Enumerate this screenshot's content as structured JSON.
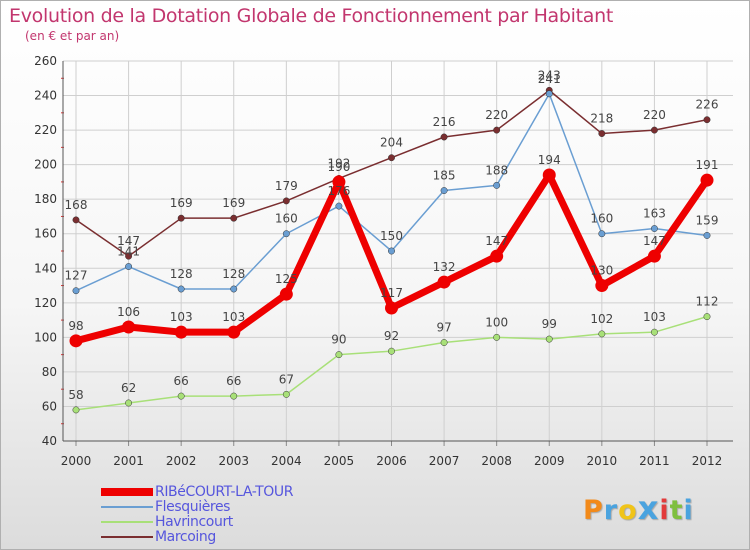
{
  "chart_data": {
    "type": "line",
    "title": "Evolution de la Dotation Globale de Fonctionnement par Habitant",
    "subtitle": "(en € et par an)",
    "xlabel": "",
    "ylabel": "",
    "categories": [
      "2000",
      "2001",
      "2002",
      "2003",
      "2004",
      "2005",
      "2006",
      "2007",
      "2008",
      "2009",
      "2010",
      "2011",
      "2012"
    ],
    "ylim": [
      40,
      260
    ],
    "yticks": [
      40,
      60,
      80,
      100,
      120,
      140,
      160,
      180,
      200,
      220,
      240,
      260
    ],
    "grid": true,
    "legend_position": "bottom-left",
    "series": [
      {
        "name": "RIBéCOURT-LA-TOUR",
        "color": "#ee0000",
        "values": [
          98,
          106,
          103,
          103,
          125,
          190,
          117,
          132,
          147,
          194,
          130,
          147,
          191
        ]
      },
      {
        "name": "Flesquières",
        "color": "#6a9ed2",
        "values": [
          127,
          141,
          128,
          128,
          160,
          176,
          150,
          185,
          188,
          241,
          160,
          163,
          159
        ]
      },
      {
        "name": "Havrincourt",
        "color": "#a8e078",
        "values": [
          58,
          62,
          66,
          66,
          67,
          90,
          92,
          97,
          100,
          99,
          102,
          103,
          112
        ]
      },
      {
        "name": "Marcoing",
        "color": "#7a2e30",
        "values": [
          168,
          147,
          169,
          169,
          179,
          192,
          204,
          216,
          220,
          243,
          218,
          220,
          226
        ]
      }
    ]
  },
  "logo": {
    "text": "Proxiti",
    "letter_colors": [
      "#f28a1a",
      "#4aa3df",
      "#f0c419",
      "#4aa3df",
      "#e23a3a",
      "#7fbf3f",
      "#4aa3df"
    ]
  }
}
